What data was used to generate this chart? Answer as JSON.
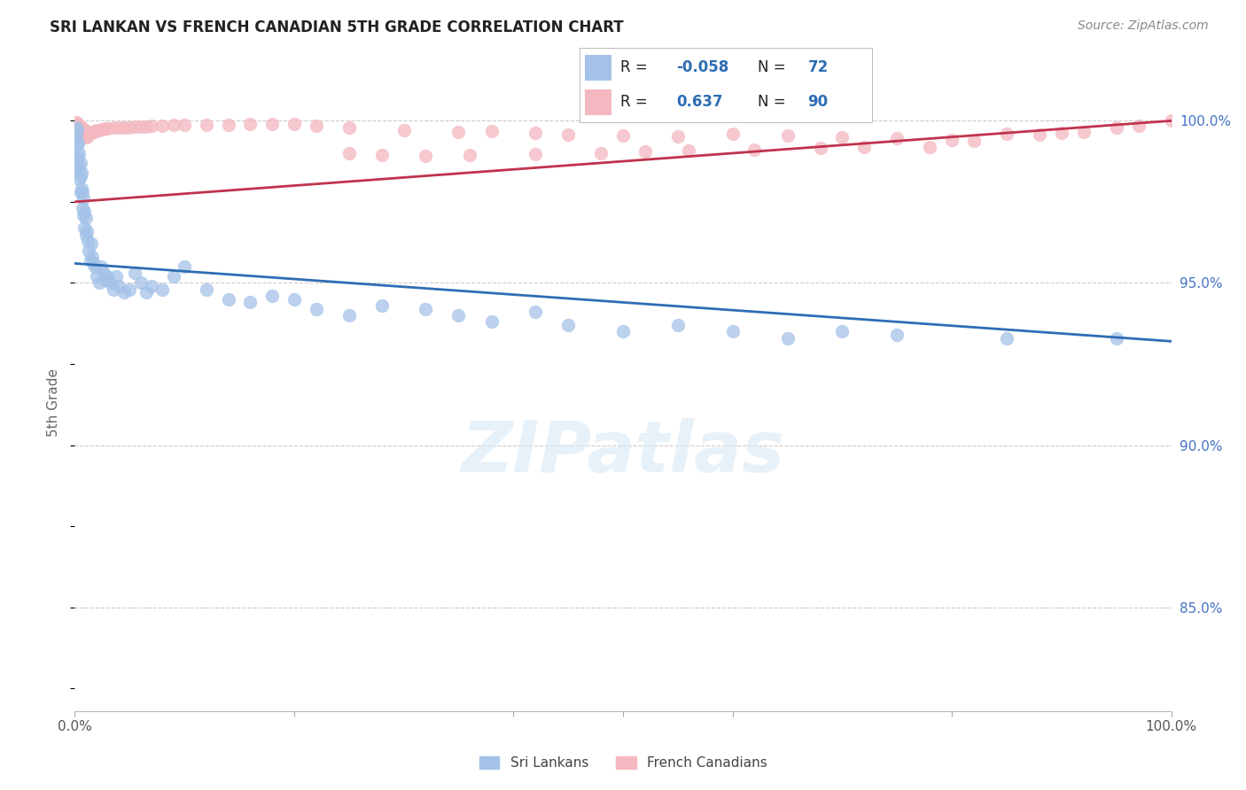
{
  "title": "SRI LANKAN VS FRENCH CANADIAN 5TH GRADE CORRELATION CHART",
  "source": "Source: ZipAtlas.com",
  "ylabel": "5th Grade",
  "legend_r_blue": "-0.058",
  "legend_n_blue": "72",
  "legend_r_pink": "0.637",
  "legend_n_pink": "90",
  "blue_color": "#a4c2e8",
  "pink_color": "#f4b8c1",
  "trend_blue": "#2e6db4",
  "trend_pink": "#c0334d",
  "blue_scatter_x": [
    0.001,
    0.001,
    0.002,
    0.002,
    0.002,
    0.003,
    0.003,
    0.003,
    0.004,
    0.004,
    0.004,
    0.005,
    0.005,
    0.005,
    0.006,
    0.006,
    0.007,
    0.007,
    0.008,
    0.008,
    0.009,
    0.009,
    0.01,
    0.01,
    0.011,
    0.012,
    0.013,
    0.014,
    0.015,
    0.016,
    0.017,
    0.018,
    0.02,
    0.022,
    0.024,
    0.026,
    0.028,
    0.03,
    0.032,
    0.035,
    0.038,
    0.04,
    0.045,
    0.05,
    0.055,
    0.06,
    0.065,
    0.07,
    0.08,
    0.09,
    0.1,
    0.12,
    0.14,
    0.16,
    0.18,
    0.2,
    0.22,
    0.25,
    0.28,
    0.32,
    0.35,
    0.38,
    0.42,
    0.45,
    0.5,
    0.55,
    0.6,
    0.65,
    0.7,
    0.75,
    0.85,
    0.95
  ],
  "blue_scatter_y": [
    0.998,
    0.995,
    0.997,
    0.993,
    0.988,
    0.993,
    0.989,
    0.985,
    0.99,
    0.986,
    0.982,
    0.987,
    0.983,
    0.978,
    0.984,
    0.979,
    0.978,
    0.973,
    0.976,
    0.971,
    0.972,
    0.967,
    0.97,
    0.965,
    0.966,
    0.963,
    0.96,
    0.957,
    0.962,
    0.958,
    0.956,
    0.955,
    0.952,
    0.95,
    0.955,
    0.953,
    0.951,
    0.952,
    0.95,
    0.948,
    0.952,
    0.949,
    0.947,
    0.948,
    0.953,
    0.95,
    0.947,
    0.949,
    0.948,
    0.952,
    0.955,
    0.948,
    0.945,
    0.944,
    0.946,
    0.945,
    0.942,
    0.94,
    0.943,
    0.942,
    0.94,
    0.938,
    0.941,
    0.937,
    0.935,
    0.937,
    0.935,
    0.933,
    0.935,
    0.934,
    0.933,
    0.933
  ],
  "pink_scatter_x": [
    0.001,
    0.001,
    0.001,
    0.002,
    0.002,
    0.002,
    0.003,
    0.003,
    0.003,
    0.004,
    0.004,
    0.004,
    0.005,
    0.005,
    0.005,
    0.006,
    0.006,
    0.007,
    0.007,
    0.008,
    0.008,
    0.009,
    0.009,
    0.01,
    0.01,
    0.011,
    0.011,
    0.012,
    0.013,
    0.014,
    0.015,
    0.016,
    0.017,
    0.018,
    0.019,
    0.02,
    0.022,
    0.025,
    0.028,
    0.03,
    0.035,
    0.04,
    0.045,
    0.05,
    0.055,
    0.06,
    0.065,
    0.07,
    0.08,
    0.09,
    0.1,
    0.12,
    0.14,
    0.16,
    0.18,
    0.2,
    0.22,
    0.25,
    0.3,
    0.35,
    0.38,
    0.42,
    0.45,
    0.5,
    0.55,
    0.6,
    0.65,
    0.7,
    0.75,
    0.8,
    0.82,
    0.85,
    0.88,
    0.9,
    0.92,
    0.95,
    0.97,
    1.0,
    0.25,
    0.28,
    0.32,
    0.36,
    0.42,
    0.48,
    0.52,
    0.56,
    0.62,
    0.68,
    0.72,
    0.78
  ],
  "pink_scatter_y": [
    0.9995,
    0.998,
    0.9965,
    0.9992,
    0.9978,
    0.9963,
    0.9988,
    0.9974,
    0.996,
    0.9985,
    0.9971,
    0.9957,
    0.9982,
    0.9968,
    0.9954,
    0.9979,
    0.9965,
    0.9976,
    0.9962,
    0.9973,
    0.9959,
    0.997,
    0.9956,
    0.9967,
    0.9953,
    0.9964,
    0.995,
    0.9961,
    0.9962,
    0.9963,
    0.9964,
    0.9965,
    0.9966,
    0.9967,
    0.9968,
    0.997,
    0.9972,
    0.9974,
    0.9975,
    0.9976,
    0.9978,
    0.9978,
    0.9979,
    0.998,
    0.9981,
    0.9982,
    0.9983,
    0.9984,
    0.9985,
    0.9986,
    0.9987,
    0.9988,
    0.9988,
    0.9989,
    0.999,
    0.9991,
    0.9985,
    0.9978,
    0.9972,
    0.9965,
    0.9968,
    0.9962,
    0.9958,
    0.9955,
    0.9952,
    0.996,
    0.9955,
    0.995,
    0.9945,
    0.994,
    0.9938,
    0.996,
    0.9958,
    0.9962,
    0.9965,
    0.998,
    0.9985,
    1.0,
    0.99,
    0.9895,
    0.9892,
    0.9895,
    0.9898,
    0.99,
    0.9905,
    0.9908,
    0.9912,
    0.9915,
    0.9918,
    0.992
  ],
  "blue_trend_x": [
    0.0,
    1.0
  ],
  "blue_trend_y": [
    0.956,
    0.932
  ],
  "pink_trend_x": [
    0.0,
    1.0
  ],
  "pink_trend_y": [
    0.975,
    1.0
  ],
  "xlim": [
    0.0,
    1.0
  ],
  "ylim": [
    0.818,
    1.008
  ],
  "yticks": [
    0.85,
    0.9,
    0.95,
    1.0
  ],
  "ytick_labels": [
    "85.0%",
    "90.0%",
    "95.0%",
    "100.0%"
  ]
}
